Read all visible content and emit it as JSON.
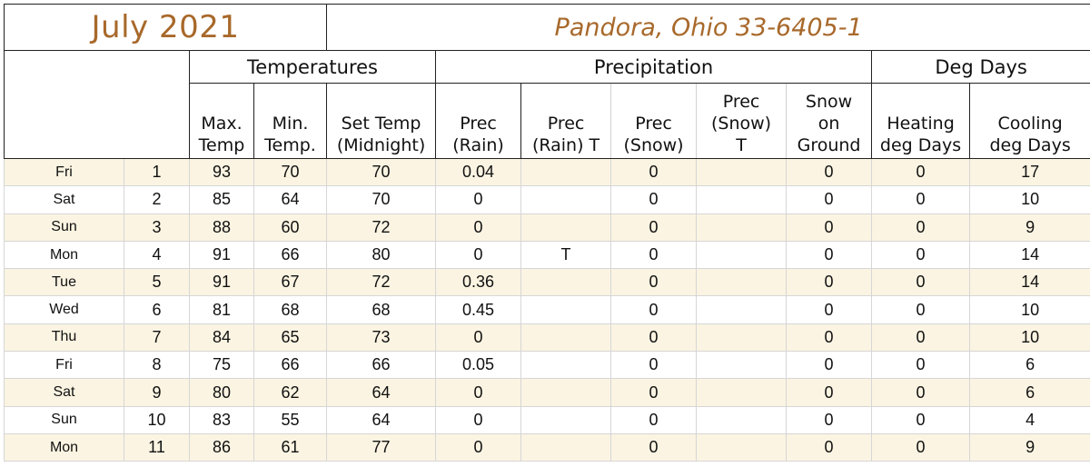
{
  "header": {
    "month_title": "July 2021",
    "station_title": "Pandora, Ohio 33-6405-1"
  },
  "groups": {
    "temperatures": "Temperatures",
    "precipitation": "Precipitation",
    "deg_days": "Deg Days"
  },
  "columns": {
    "max_temp": [
      "Max.",
      "Temp"
    ],
    "min_temp": [
      "Min.",
      "Temp."
    ],
    "set_temp": [
      "Set Temp",
      "(Midnight)"
    ],
    "prec_rain": [
      "Prec",
      "(Rain)"
    ],
    "prec_rain_t": [
      "Prec",
      "(Rain) T"
    ],
    "prec_snow": [
      "Prec",
      "(Snow)"
    ],
    "prec_snow_t": [
      "Prec",
      "(Snow)",
      "T"
    ],
    "snow_ground": [
      "Snow",
      "on",
      "Ground"
    ],
    "heating": [
      "Heating",
      "deg Days"
    ],
    "cooling": [
      "Cooling",
      "deg Days"
    ]
  },
  "rows": [
    {
      "day": "Fri",
      "date": "1",
      "max": "93",
      "min": "70",
      "set": "70",
      "rain": "0.04",
      "rain_t": "",
      "snow": "0",
      "snow_t": "",
      "ground": "0",
      "heat": "0",
      "cool": "17"
    },
    {
      "day": "Sat",
      "date": "2",
      "max": "85",
      "min": "64",
      "set": "70",
      "rain": "0",
      "rain_t": "",
      "snow": "0",
      "snow_t": "",
      "ground": "0",
      "heat": "0",
      "cool": "10"
    },
    {
      "day": "Sun",
      "date": "3",
      "max": "88",
      "min": "60",
      "set": "72",
      "rain": "0",
      "rain_t": "",
      "snow": "0",
      "snow_t": "",
      "ground": "0",
      "heat": "0",
      "cool": "9"
    },
    {
      "day": "Mon",
      "date": "4",
      "max": "91",
      "min": "66",
      "set": "80",
      "rain": "0",
      "rain_t": "T",
      "snow": "0",
      "snow_t": "",
      "ground": "0",
      "heat": "0",
      "cool": "14"
    },
    {
      "day": "Tue",
      "date": "5",
      "max": "91",
      "min": "67",
      "set": "72",
      "rain": "0.36",
      "rain_t": "",
      "snow": "0",
      "snow_t": "",
      "ground": "0",
      "heat": "0",
      "cool": "14"
    },
    {
      "day": "Wed",
      "date": "6",
      "max": "81",
      "min": "68",
      "set": "68",
      "rain": "0.45",
      "rain_t": "",
      "snow": "0",
      "snow_t": "",
      "ground": "0",
      "heat": "0",
      "cool": "10"
    },
    {
      "day": "Thu",
      "date": "7",
      "max": "84",
      "min": "65",
      "set": "73",
      "rain": "0",
      "rain_t": "",
      "snow": "0",
      "snow_t": "",
      "ground": "0",
      "heat": "0",
      "cool": "10"
    },
    {
      "day": "Fri",
      "date": "8",
      "max": "75",
      "min": "66",
      "set": "66",
      "rain": "0.05",
      "rain_t": "",
      "snow": "0",
      "snow_t": "",
      "ground": "0",
      "heat": "0",
      "cool": "6"
    },
    {
      "day": "Sat",
      "date": "9",
      "max": "80",
      "min": "62",
      "set": "64",
      "rain": "0",
      "rain_t": "",
      "snow": "0",
      "snow_t": "",
      "ground": "0",
      "heat": "0",
      "cool": "6"
    },
    {
      "day": "Sun",
      "date": "10",
      "max": "83",
      "min": "55",
      "set": "64",
      "rain": "0",
      "rain_t": "",
      "snow": "0",
      "snow_t": "",
      "ground": "0",
      "heat": "0",
      "cool": "4"
    },
    {
      "day": "Mon",
      "date": "11",
      "max": "86",
      "min": "61",
      "set": "77",
      "rain": "0",
      "rain_t": "",
      "snow": "0",
      "snow_t": "",
      "ground": "0",
      "heat": "0",
      "cool": "9"
    }
  ],
  "colors": {
    "title_accent": "#a8692b",
    "stripe": "#fbf4e2"
  }
}
